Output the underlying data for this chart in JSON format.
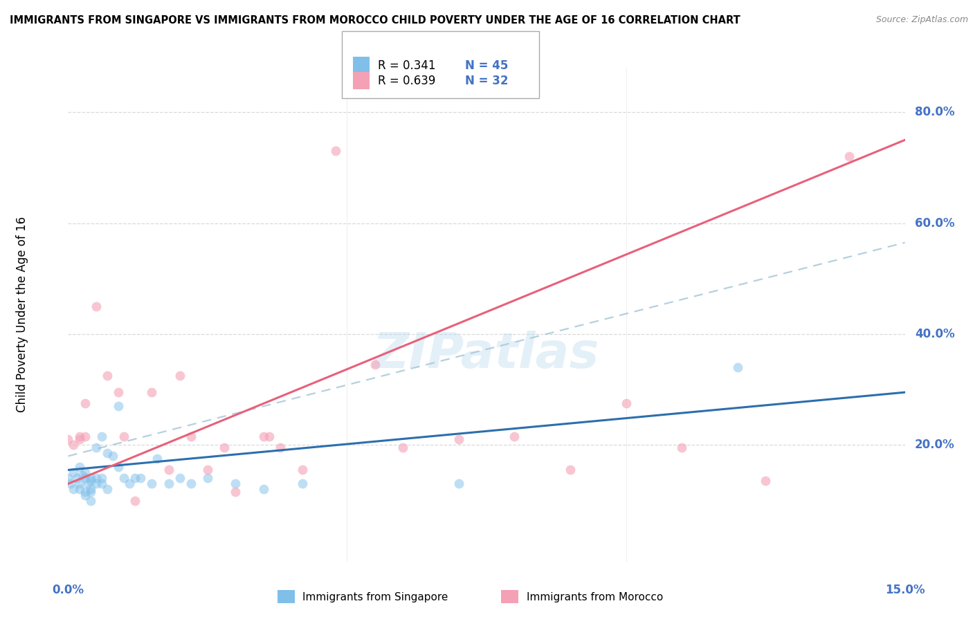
{
  "title": "IMMIGRANTS FROM SINGAPORE VS IMMIGRANTS FROM MOROCCO CHILD POVERTY UNDER THE AGE OF 16 CORRELATION CHART",
  "source": "Source: ZipAtlas.com",
  "ylabel": "Child Poverty Under the Age of 16",
  "legend_r_sg": "0.341",
  "legend_n_sg": "45",
  "legend_r_mo": "0.639",
  "legend_n_mo": "32",
  "color_singapore": "#7fbfea",
  "color_morocco": "#f4a0b5",
  "color_singapore_line": "#2c6fad",
  "color_morocco_line": "#e8607a",
  "color_dashed": "#a8c8d8",
  "xlim": [
    0.0,
    0.15
  ],
  "ylim": [
    -0.01,
    0.88
  ],
  "sg_line_x0": 0.0,
  "sg_line_y0": 0.155,
  "sg_line_x1": 0.15,
  "sg_line_y1": 0.295,
  "mo_line_x0": 0.0,
  "mo_line_y0": 0.13,
  "mo_line_x1": 0.15,
  "mo_line_y1": 0.75,
  "dash_line_x0": 0.0,
  "dash_line_y0": 0.18,
  "dash_line_x1": 0.15,
  "dash_line_y1": 0.565,
  "singapore_x": [
    0.0,
    0.0005,
    0.001,
    0.001,
    0.0015,
    0.002,
    0.002,
    0.002,
    0.0025,
    0.003,
    0.003,
    0.003,
    0.003,
    0.0035,
    0.004,
    0.004,
    0.004,
    0.004,
    0.004,
    0.005,
    0.005,
    0.005,
    0.006,
    0.006,
    0.006,
    0.007,
    0.007,
    0.008,
    0.009,
    0.009,
    0.01,
    0.011,
    0.012,
    0.013,
    0.015,
    0.016,
    0.018,
    0.02,
    0.022,
    0.025,
    0.03,
    0.035,
    0.042,
    0.07,
    0.12
  ],
  "singapore_y": [
    0.14,
    0.13,
    0.12,
    0.15,
    0.14,
    0.12,
    0.13,
    0.16,
    0.145,
    0.14,
    0.115,
    0.11,
    0.15,
    0.13,
    0.135,
    0.14,
    0.12,
    0.115,
    0.1,
    0.195,
    0.14,
    0.13,
    0.14,
    0.215,
    0.13,
    0.185,
    0.12,
    0.18,
    0.27,
    0.16,
    0.14,
    0.13,
    0.14,
    0.14,
    0.13,
    0.175,
    0.13,
    0.14,
    0.13,
    0.14,
    0.13,
    0.12,
    0.13,
    0.13,
    0.34
  ],
  "morocco_x": [
    0.0,
    0.001,
    0.002,
    0.002,
    0.003,
    0.003,
    0.005,
    0.007,
    0.01,
    0.012,
    0.015,
    0.018,
    0.02,
    0.022,
    0.025,
    0.028,
    0.03,
    0.035,
    0.038,
    0.042,
    0.048,
    0.055,
    0.06,
    0.07,
    0.08,
    0.09,
    0.1,
    0.11,
    0.125,
    0.14,
    0.036,
    0.009
  ],
  "morocco_y": [
    0.21,
    0.2,
    0.215,
    0.21,
    0.215,
    0.275,
    0.45,
    0.325,
    0.215,
    0.1,
    0.295,
    0.155,
    0.325,
    0.215,
    0.155,
    0.195,
    0.115,
    0.215,
    0.195,
    0.155,
    0.73,
    0.345,
    0.195,
    0.21,
    0.215,
    0.155,
    0.275,
    0.195,
    0.135,
    0.72,
    0.215,
    0.295
  ],
  "watermark": "ZIPatlas",
  "background_color": "#ffffff",
  "grid_color": "#d0d0d0",
  "ytick_vals": [
    0.2,
    0.4,
    0.6,
    0.8
  ],
  "ytick_labels": [
    "20.0%",
    "40.0%",
    "60.0%",
    "80.0%"
  ],
  "xtick_vals": [
    0.0,
    0.05,
    0.1,
    0.15
  ],
  "xtick_labels": [
    "0.0%",
    "",
    "",
    "15.0%"
  ]
}
